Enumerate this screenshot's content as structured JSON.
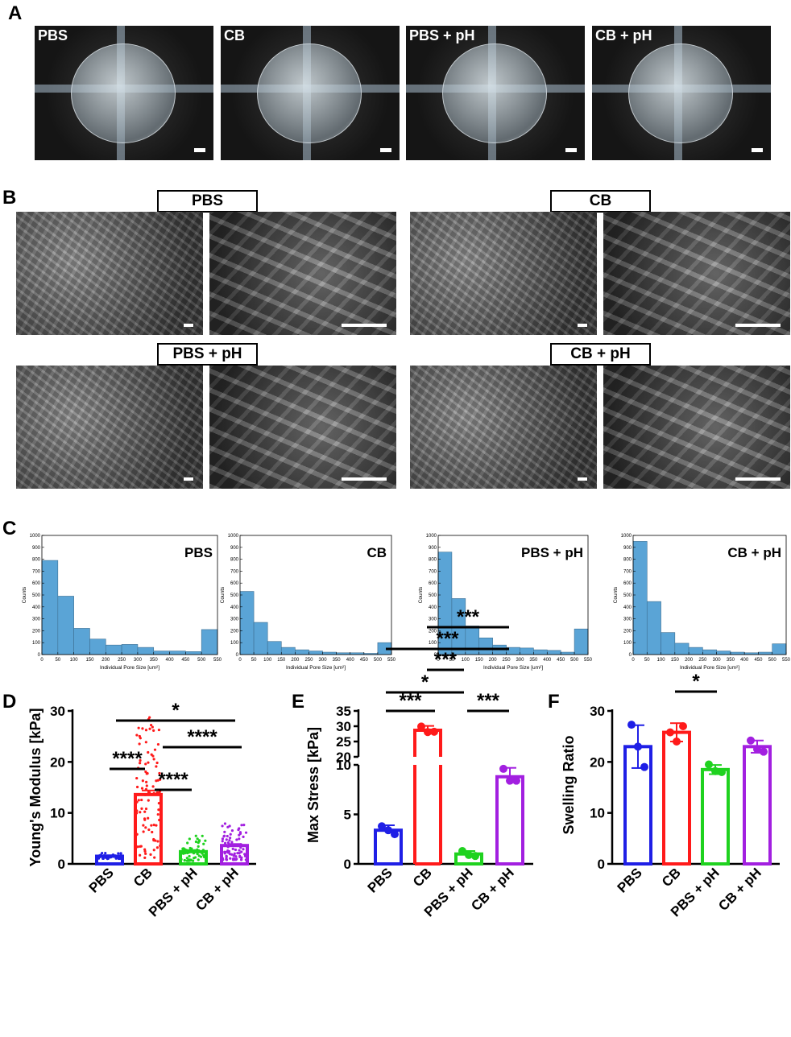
{
  "panels": {
    "A": "A",
    "B": "B",
    "C": "C",
    "D": "D",
    "E": "E",
    "F": "F"
  },
  "groups": [
    "PBS",
    "CB",
    "PBS + pH",
    "CB + pH"
  ],
  "colors": {
    "PBS": "#1f1fe6",
    "CB": "#ff1a1a",
    "PBS + pH": "#1fd21f",
    "CB + pH": "#a21fe0",
    "hist": "#5aa4d6"
  },
  "chart_data": [
    {
      "type": "bar",
      "panel": "C",
      "title": "PBS",
      "xlabel": "Individual Pore Size [um²]",
      "ylabel": "Counts",
      "x_ticks": [
        0,
        50,
        100,
        150,
        200,
        250,
        300,
        350,
        400,
        450,
        500,
        550
      ],
      "y_ticks": [
        0,
        100,
        200,
        300,
        400,
        500,
        600,
        700,
        800,
        900,
        1000
      ],
      "ylim": [
        0,
        1000
      ],
      "bin_edges": [
        0,
        50,
        100,
        150,
        200,
        250,
        300,
        350,
        400,
        450,
        500,
        550
      ],
      "values": [
        790,
        490,
        220,
        130,
        80,
        85,
        60,
        30,
        30,
        25,
        210
      ]
    },
    {
      "type": "bar",
      "panel": "C",
      "title": "CB",
      "xlabel": "Individual Pore Size [um²]",
      "ylabel": "Counts",
      "x_ticks": [
        0,
        50,
        100,
        150,
        200,
        250,
        300,
        350,
        400,
        450,
        500,
        550
      ],
      "y_ticks": [
        0,
        100,
        200,
        300,
        400,
        500,
        600,
        700,
        800,
        900,
        1000
      ],
      "ylim": [
        0,
        1000
      ],
      "bin_edges": [
        0,
        50,
        100,
        150,
        200,
        250,
        300,
        350,
        400,
        450,
        500,
        550
      ],
      "values": [
        530,
        270,
        110,
        60,
        40,
        30,
        20,
        15,
        15,
        10,
        100
      ]
    },
    {
      "type": "bar",
      "panel": "C",
      "title": "PBS + pH",
      "xlabel": "Individual Pore Size [um²]",
      "ylabel": "Counts",
      "x_ticks": [
        0,
        50,
        100,
        150,
        200,
        250,
        300,
        350,
        400,
        450,
        500,
        550
      ],
      "y_ticks": [
        0,
        100,
        200,
        300,
        400,
        500,
        600,
        700,
        800,
        900,
        1000
      ],
      "ylim": [
        0,
        1000
      ],
      "bin_edges": [
        0,
        50,
        100,
        150,
        200,
        250,
        300,
        350,
        400,
        450,
        500,
        550
      ],
      "values": [
        860,
        470,
        240,
        140,
        80,
        60,
        55,
        40,
        35,
        20,
        215
      ]
    },
    {
      "type": "bar",
      "panel": "C",
      "title": "CB + pH",
      "xlabel": "Individual Pore Size [um²]",
      "ylabel": "Counts",
      "x_ticks": [
        0,
        50,
        100,
        150,
        200,
        250,
        300,
        350,
        400,
        450,
        500,
        550
      ],
      "y_ticks": [
        0,
        100,
        200,
        300,
        400,
        500,
        600,
        700,
        800,
        900,
        1000
      ],
      "ylim": [
        0,
        1000
      ],
      "bin_edges": [
        0,
        50,
        100,
        150,
        200,
        250,
        300,
        350,
        400,
        450,
        500,
        550
      ],
      "values": [
        950,
        445,
        185,
        95,
        60,
        40,
        30,
        20,
        15,
        20,
        90
      ]
    },
    {
      "type": "bar",
      "panel": "D",
      "ylabel": "Young's Modulus [kPa]",
      "categories": [
        "PBS",
        "CB",
        "PBS + pH",
        "CB + pH"
      ],
      "values": [
        1.5,
        13.6,
        2.4,
        3.6
      ],
      "errors": [
        0.2,
        0.8,
        0.3,
        0.3
      ],
      "y_ticks": [
        0,
        10,
        20,
        30
      ],
      "ylim": [
        0,
        30
      ],
      "points_n": [
        40,
        95,
        60,
        80
      ],
      "points_range": [
        [
          1.0,
          2.2
        ],
        [
          1.0,
          29.5
        ],
        [
          0.6,
          5.8
        ],
        [
          0.8,
          8.0
        ]
      ],
      "significance": [
        {
          "from": "PBS",
          "to": "CB",
          "label": "****"
        },
        {
          "from": "CB",
          "to": "PBS + pH",
          "label": "****"
        },
        {
          "from": "CB",
          "to": "CB + pH",
          "label": "****"
        },
        {
          "from": "PBS",
          "to": "CB + pH",
          "label": "*"
        }
      ]
    },
    {
      "type": "bar",
      "panel": "E",
      "ylabel": "Max Stress [kPa]",
      "categories": [
        "PBS",
        "CB",
        "PBS + pH",
        "CB + pH"
      ],
      "values": [
        3.4,
        28.7,
        1.0,
        8.8
      ],
      "errors": [
        0.5,
        1.4,
        0.3,
        0.9
      ],
      "points": [
        [
          3.8,
          3.0,
          3.4
        ],
        [
          29.9,
          28.2,
          28.1
        ],
        [
          1.3,
          0.8,
          0.9
        ],
        [
          9.6,
          8.4,
          8.4
        ]
      ],
      "y_ticks_lower": [
        0,
        5,
        10
      ],
      "y_ticks_upper": [
        20,
        25,
        30,
        35
      ],
      "axis_break": [
        10,
        20
      ],
      "significance": [
        {
          "from": "PBS",
          "to": "CB",
          "label": "***"
        },
        {
          "from": "PBS + pH",
          "to": "CB + pH",
          "label": "***"
        },
        {
          "from": "PBS",
          "to": "PBS + pH",
          "label": "*"
        },
        {
          "from": "CB",
          "to": "PBS + pH",
          "label": "***"
        },
        {
          "from": "PBS",
          "to": "CB + pH",
          "label": "***"
        },
        {
          "from": "CB",
          "to": "CB + pH",
          "label": "***"
        }
      ]
    },
    {
      "type": "bar",
      "panel": "F",
      "ylabel": "Swelling Ratio",
      "categories": [
        "PBS",
        "CB",
        "PBS + pH",
        "CB + pH"
      ],
      "values": [
        23.0,
        25.8,
        18.5,
        23.0
      ],
      "errors": [
        4.2,
        1.8,
        0.9,
        1.2
      ],
      "points": [
        [
          27.3,
          19.0,
          23.0
        ],
        [
          25.8,
          27.0,
          24.0
        ],
        [
          19.5,
          18.0,
          18.2
        ],
        [
          24.2,
          22.0,
          22.5
        ]
      ],
      "y_ticks": [
        0,
        10,
        20,
        30
      ],
      "ylim": [
        0,
        30
      ],
      "significance": [
        {
          "from": "CB",
          "to": "PBS + pH",
          "label": "*"
        }
      ]
    }
  ]
}
